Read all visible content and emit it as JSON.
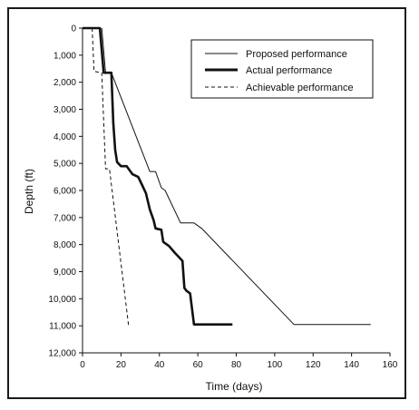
{
  "chart_data": {
    "type": "line",
    "title": "",
    "xlabel": "Time (days)",
    "ylabel": "Depth (ft)",
    "xlim": [
      0,
      160
    ],
    "ylim": [
      0,
      12000
    ],
    "y_inverted": true,
    "x_ticks": [
      "0",
      "20",
      "40",
      "60",
      "80",
      "100",
      "120",
      "140",
      "160"
    ],
    "y_ticks": [
      "0",
      "1,000",
      "2,000",
      "3,000",
      "4,000",
      "5,000",
      "6,000",
      "7,000",
      "8,000",
      "9,000",
      "10,000",
      "11,000",
      "12,000"
    ],
    "grid": false,
    "legend_position": "top-right",
    "series": [
      {
        "name": "Proposed performance",
        "style": "thin-solid",
        "points": [
          [
            10,
            0
          ],
          [
            12,
            1650
          ],
          [
            15,
            1650
          ],
          [
            35,
            5300
          ],
          [
            38,
            5300
          ],
          [
            41,
            5900
          ],
          [
            43,
            6000
          ],
          [
            51,
            7200
          ],
          [
            58,
            7200
          ],
          [
            62,
            7400
          ],
          [
            110,
            10950
          ],
          [
            150,
            10950
          ]
        ]
      },
      {
        "name": "Actual performance",
        "style": "thick-solid",
        "points": [
          [
            0,
            0
          ],
          [
            9,
            0
          ],
          [
            11,
            1650
          ],
          [
            15,
            1650
          ],
          [
            16,
            3500
          ],
          [
            17,
            4500
          ],
          [
            18,
            4950
          ],
          [
            20,
            5100
          ],
          [
            23,
            5100
          ],
          [
            26,
            5400
          ],
          [
            29,
            5500
          ],
          [
            31,
            5800
          ],
          [
            33,
            6100
          ],
          [
            35,
            6700
          ],
          [
            37,
            7100
          ],
          [
            38,
            7400
          ],
          [
            41,
            7450
          ],
          [
            42,
            7900
          ],
          [
            45,
            8050
          ],
          [
            48,
            8300
          ],
          [
            52,
            8600
          ],
          [
            53,
            9600
          ],
          [
            54,
            9700
          ],
          [
            56,
            9800
          ],
          [
            58,
            10950
          ],
          [
            78,
            10950
          ]
        ]
      },
      {
        "name": "Achievable performance",
        "style": "dashed",
        "points": [
          [
            5,
            0
          ],
          [
            6,
            1600
          ],
          [
            10,
            1650
          ],
          [
            12,
            5200
          ],
          [
            14,
            5200
          ],
          [
            24,
            11000
          ]
        ]
      }
    ]
  }
}
